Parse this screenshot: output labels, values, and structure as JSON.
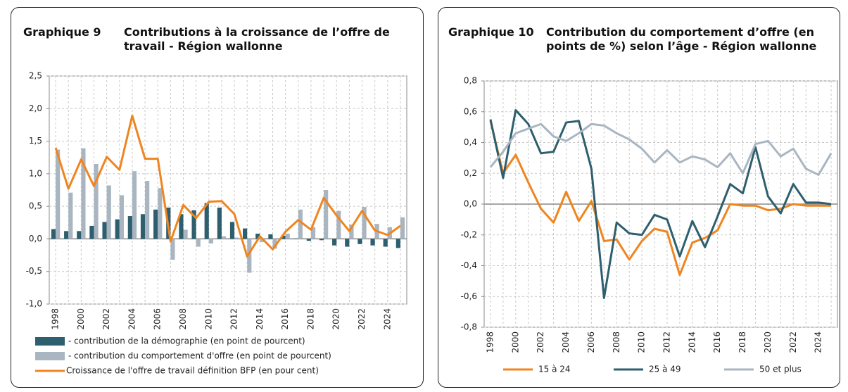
{
  "chart_data": [
    {
      "type": "bar",
      "number": "Graphique 9",
      "title": "Contributions à la croissance de l’offre de travail - Région wallonne",
      "categories": [
        "1998",
        null,
        "2000",
        null,
        "2002",
        null,
        "2004",
        null,
        "2006",
        null,
        "2008",
        null,
        "2010",
        null,
        "2012",
        null,
        "2014",
        null,
        "2016",
        null,
        "2018",
        null,
        "2020",
        null,
        "2022",
        null,
        "2024",
        null
      ],
      "series": [
        {
          "name": "- contribution de la démographie (en point de pourcent)",
          "type": "bar",
          "color": "#2e5f6e",
          "values": [
            0.15,
            0.12,
            0.12,
            0.2,
            0.26,
            0.3,
            0.35,
            0.38,
            0.45,
            0.48,
            0.38,
            0.44,
            0.55,
            0.48,
            0.26,
            0.16,
            0.08,
            0.07,
            0.05,
            0.0,
            -0.03,
            -0.02,
            -0.1,
            -0.12,
            -0.08,
            -0.1,
            -0.12,
            -0.14
          ]
        },
        {
          "name": "- contribution du comportement d'offre (en point de pourcent)",
          "type": "bar",
          "color": "#a9b6c1",
          "values": [
            1.37,
            0.71,
            1.39,
            1.15,
            0.82,
            0.67,
            1.04,
            0.89,
            0.78,
            -0.32,
            0.14,
            -0.12,
            -0.07,
            0.04,
            0.02,
            -0.52,
            -0.05,
            -0.15,
            0.08,
            0.45,
            0.18,
            0.75,
            0.43,
            0.22,
            0.49,
            0.23,
            0.18,
            0.33
          ]
        },
        {
          "name": "Croissance de l'offre de travail définition BFP (en pour cent)",
          "type": "line",
          "color": "#f0841e",
          "values": [
            1.4,
            0.77,
            1.22,
            0.81,
            1.26,
            1.06,
            1.89,
            1.23,
            1.23,
            -0.04,
            0.52,
            0.32,
            0.57,
            0.58,
            0.38,
            -0.27,
            0.04,
            -0.16,
            0.11,
            0.29,
            0.14,
            0.63,
            0.36,
            0.12,
            0.43,
            0.13,
            0.06,
            0.2
          ]
        }
      ],
      "ylim": [
        -1.0,
        2.5
      ],
      "yticks": [
        {
          "value": -1.0,
          "label": "-1,0"
        },
        {
          "value": -0.5,
          "label": "-0,5"
        },
        {
          "value": 0,
          "label": "0,0"
        },
        {
          "value": 0.5,
          "label": "0,5"
        },
        {
          "value": 1.0,
          "label": "1,0"
        },
        {
          "value": 1.5,
          "label": "1,5"
        },
        {
          "value": 2.0,
          "label": "2,0"
        },
        {
          "value": 2.5,
          "label": "2,5"
        }
      ],
      "grid": true,
      "legend": "bottom"
    },
    {
      "type": "line",
      "number": "Graphique 10",
      "title": "Contribution du comportement d’offre (en points de %) selon l’âge - Région wallonne",
      "categories": [
        "1998",
        null,
        "2000",
        null,
        "2002",
        null,
        "2004",
        null,
        "2006",
        null,
        "2008",
        null,
        "2010",
        null,
        "2012",
        null,
        "2014",
        null,
        "2016",
        null,
        "2018",
        null,
        "2020",
        null,
        "2022",
        null,
        "2024",
        null
      ],
      "series": [
        {
          "name": "15 à 24",
          "color": "#f0841e",
          "values": [
            0.54,
            0.2,
            0.32,
            0.14,
            -0.03,
            -0.12,
            0.08,
            -0.11,
            0.02,
            -0.24,
            -0.23,
            -0.36,
            -0.24,
            -0.16,
            -0.18,
            -0.46,
            -0.25,
            -0.22,
            -0.17,
            0.0,
            -0.01,
            -0.01,
            -0.04,
            -0.03,
            0.0,
            -0.01,
            -0.01,
            -0.01
          ]
        },
        {
          "name": "25 à 49",
          "color": "#2e5f6e",
          "values": [
            0.55,
            0.17,
            0.61,
            0.52,
            0.33,
            0.34,
            0.53,
            0.54,
            0.23,
            -0.61,
            -0.12,
            -0.19,
            -0.2,
            -0.07,
            -0.1,
            -0.34,
            -0.11,
            -0.28,
            -0.08,
            0.13,
            0.07,
            0.37,
            0.05,
            -0.06,
            0.13,
            0.01,
            0.01,
            0.0
          ]
        },
        {
          "name": "50 et plus",
          "color": "#a9b6c1",
          "values": [
            0.24,
            0.34,
            0.46,
            0.49,
            0.52,
            0.44,
            0.41,
            0.46,
            0.52,
            0.51,
            0.46,
            0.42,
            0.36,
            0.27,
            0.35,
            0.27,
            0.31,
            0.29,
            0.24,
            0.33,
            0.2,
            0.39,
            0.41,
            0.31,
            0.36,
            0.23,
            0.19,
            0.33
          ]
        }
      ],
      "ylim": [
        -0.8,
        0.8
      ],
      "yticks": [
        {
          "value": -0.8,
          "label": "-0,8"
        },
        {
          "value": -0.6,
          "label": "-0,6"
        },
        {
          "value": -0.4,
          "label": "-0,4"
        },
        {
          "value": -0.2,
          "label": "-0,2"
        },
        {
          "value": 0,
          "label": "0,0"
        },
        {
          "value": 0.2,
          "label": "0,2"
        },
        {
          "value": 0.4,
          "label": "0,4"
        },
        {
          "value": 0.6,
          "label": "0,6"
        },
        {
          "value": 0.8,
          "label": "0,8"
        }
      ],
      "grid": true,
      "legend": "bottom"
    }
  ]
}
